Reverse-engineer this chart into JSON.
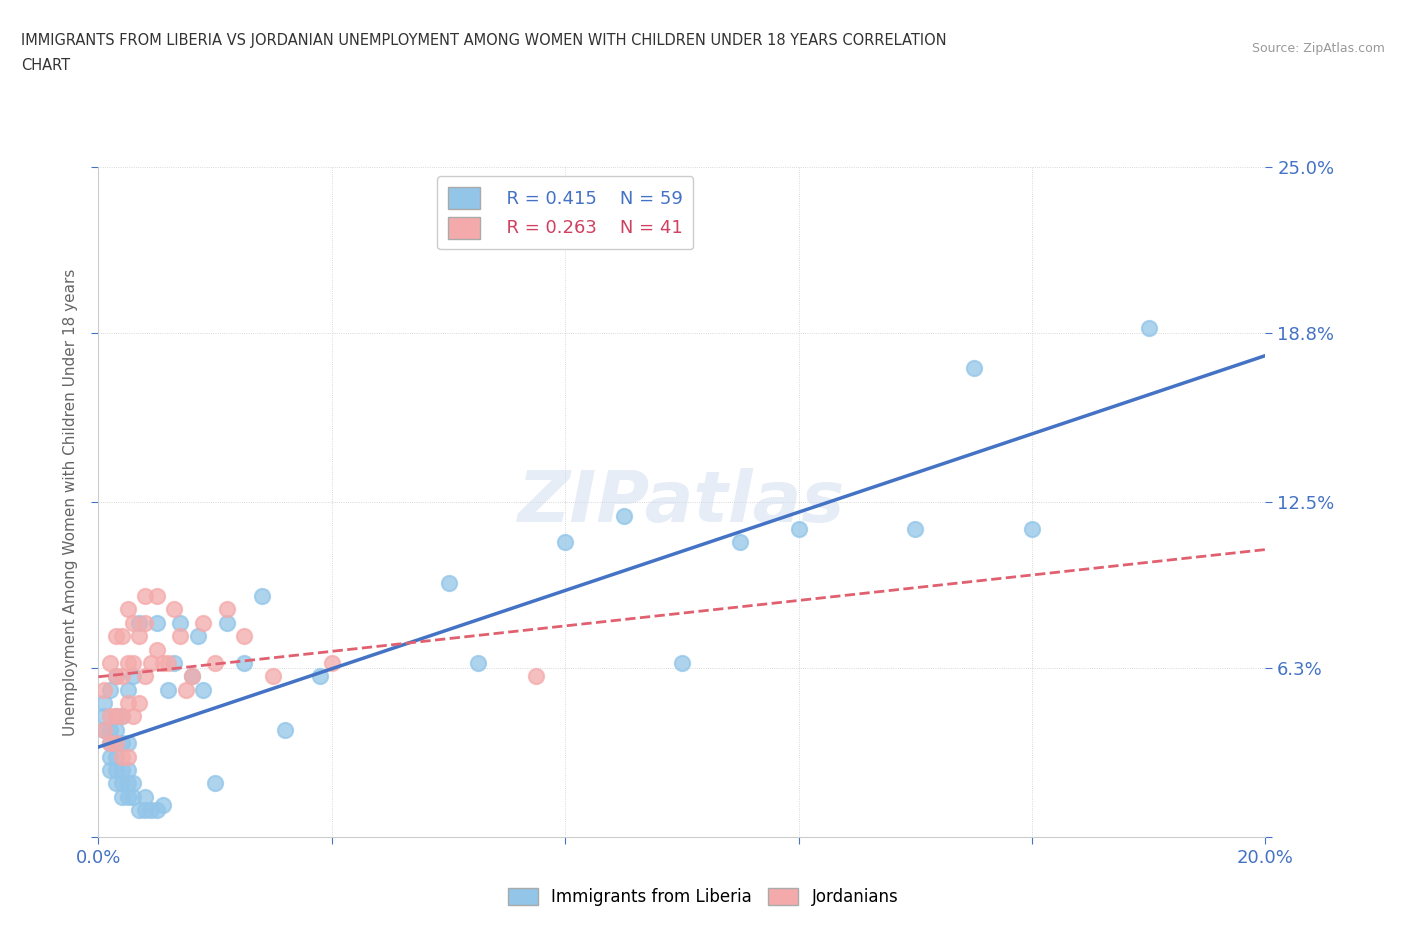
{
  "title_line1": "IMMIGRANTS FROM LIBERIA VS JORDANIAN UNEMPLOYMENT AMONG WOMEN WITH CHILDREN UNDER 18 YEARS CORRELATION",
  "title_line2": "CHART",
  "source_text": "Source: ZipAtlas.com",
  "ylabel": "Unemployment Among Women with Children Under 18 years",
  "xlim": [
    0.0,
    0.2
  ],
  "ylim": [
    0.0,
    0.25
  ],
  "xtick_positions": [
    0.0,
    0.04,
    0.08,
    0.12,
    0.16,
    0.2
  ],
  "xticklabels": [
    "0.0%",
    "",
    "",
    "",
    "",
    "20.0%"
  ],
  "ytick_positions": [
    0.0,
    0.063,
    0.125,
    0.188,
    0.25
  ],
  "yticklabels": [
    "",
    "6.3%",
    "12.5%",
    "18.8%",
    "25.0%"
  ],
  "liberia_color": "#92C5E8",
  "jordan_color": "#F4AAAA",
  "liberia_line_color": "#4472C4",
  "jordan_line_color": "#E06070",
  "jordan_line_dash": "--",
  "watermark": "ZIPatlas",
  "legend_r1": "R = 0.415",
  "legend_n1": "N = 59",
  "legend_r2": "R = 0.263",
  "legend_n2": "N = 41",
  "liberia_label": "Immigrants from Liberia",
  "jordan_label": "Jordanians",
  "liberia_x": [
    0.001,
    0.001,
    0.001,
    0.002,
    0.002,
    0.002,
    0.002,
    0.002,
    0.003,
    0.003,
    0.003,
    0.003,
    0.003,
    0.003,
    0.003,
    0.004,
    0.004,
    0.004,
    0.004,
    0.004,
    0.005,
    0.005,
    0.005,
    0.005,
    0.005,
    0.006,
    0.006,
    0.006,
    0.007,
    0.007,
    0.008,
    0.008,
    0.009,
    0.01,
    0.01,
    0.011,
    0.012,
    0.013,
    0.014,
    0.016,
    0.017,
    0.018,
    0.02,
    0.022,
    0.025,
    0.028,
    0.032,
    0.038,
    0.06,
    0.065,
    0.08,
    0.09,
    0.1,
    0.11,
    0.12,
    0.14,
    0.15,
    0.16,
    0.18
  ],
  "liberia_y": [
    0.04,
    0.045,
    0.05,
    0.025,
    0.03,
    0.035,
    0.04,
    0.055,
    0.02,
    0.025,
    0.03,
    0.035,
    0.04,
    0.045,
    0.06,
    0.015,
    0.02,
    0.025,
    0.035,
    0.045,
    0.015,
    0.02,
    0.025,
    0.035,
    0.055,
    0.015,
    0.02,
    0.06,
    0.01,
    0.08,
    0.01,
    0.015,
    0.01,
    0.01,
    0.08,
    0.012,
    0.055,
    0.065,
    0.08,
    0.06,
    0.075,
    0.055,
    0.02,
    0.08,
    0.065,
    0.09,
    0.04,
    0.06,
    0.095,
    0.065,
    0.11,
    0.12,
    0.065,
    0.11,
    0.115,
    0.115,
    0.175,
    0.115,
    0.19
  ],
  "jordan_x": [
    0.001,
    0.001,
    0.002,
    0.002,
    0.002,
    0.003,
    0.003,
    0.003,
    0.003,
    0.004,
    0.004,
    0.004,
    0.004,
    0.005,
    0.005,
    0.005,
    0.005,
    0.006,
    0.006,
    0.006,
    0.007,
    0.007,
    0.008,
    0.008,
    0.008,
    0.009,
    0.01,
    0.01,
    0.011,
    0.012,
    0.013,
    0.014,
    0.015,
    0.016,
    0.018,
    0.02,
    0.022,
    0.025,
    0.03,
    0.04,
    0.075
  ],
  "jordan_y": [
    0.04,
    0.055,
    0.035,
    0.045,
    0.065,
    0.035,
    0.045,
    0.06,
    0.075,
    0.03,
    0.045,
    0.06,
    0.075,
    0.03,
    0.05,
    0.065,
    0.085,
    0.045,
    0.065,
    0.08,
    0.05,
    0.075,
    0.06,
    0.08,
    0.09,
    0.065,
    0.07,
    0.09,
    0.065,
    0.065,
    0.085,
    0.075,
    0.055,
    0.06,
    0.08,
    0.065,
    0.085,
    0.075,
    0.06,
    0.065,
    0.06
  ],
  "background_color": "#FFFFFF",
  "grid_color": "#CCCCCC",
  "title_color": "#333333",
  "tick_color": "#4472C4",
  "ylabel_color": "#666666"
}
